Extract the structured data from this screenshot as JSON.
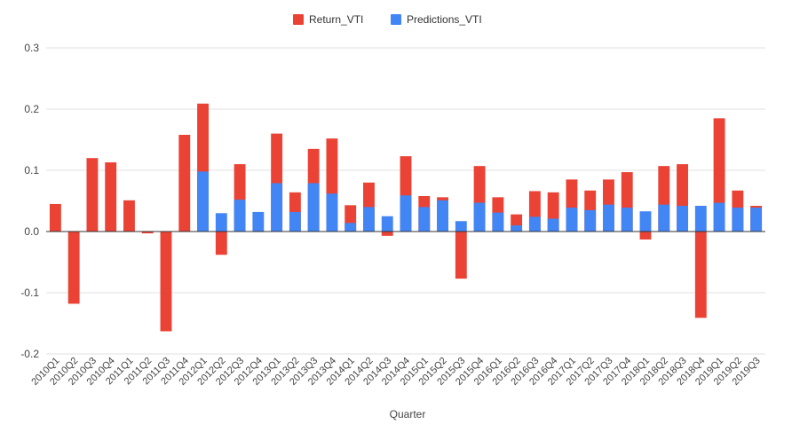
{
  "chart_data": {
    "type": "bar",
    "stacked": false,
    "overlap": true,
    "title": "",
    "xlabel": "Quarter",
    "ylabel": "",
    "ylim": [
      -0.2,
      0.3
    ],
    "yticks": [
      -0.2,
      -0.1,
      0.0,
      0.1,
      0.2,
      0.3
    ],
    "ytick_labels": [
      "-0.2",
      "-0.1",
      "0.0",
      "0.1",
      "0.2",
      "0.3"
    ],
    "grid": true,
    "legend_position": "top",
    "categories": [
      "2010Q1",
      "2010Q2",
      "2010Q3",
      "2010Q4",
      "2011Q1",
      "2011Q2",
      "2011Q3",
      "2011Q4",
      "2012Q1",
      "2012Q2",
      "2012Q3",
      "2012Q4",
      "2013Q1",
      "2013Q2",
      "2013Q3",
      "2013Q4",
      "2014Q1",
      "2014Q2",
      "2014Q3",
      "2014Q4",
      "2015Q1",
      "2015Q2",
      "2015Q3",
      "2015Q4",
      "2016Q1",
      "2016Q2",
      "2016Q3",
      "2016Q4",
      "2017Q1",
      "2017Q2",
      "2017Q3",
      "2017Q4",
      "2018Q1",
      "2018Q2",
      "2018Q3",
      "2018Q4",
      "2019Q1",
      "2019Q2",
      "2019Q3"
    ],
    "series": [
      {
        "name": "Return_VTI",
        "color": "#ea4335",
        "values": [
          0.045,
          -0.118,
          0.12,
          0.113,
          0.051,
          -0.003,
          -0.163,
          0.158,
          0.209,
          -0.038,
          0.11,
          0.0,
          0.16,
          0.064,
          0.135,
          0.152,
          0.043,
          0.08,
          -0.007,
          0.123,
          0.058,
          0.056,
          -0.077,
          0.107,
          0.056,
          0.028,
          0.066,
          0.064,
          0.085,
          0.067,
          0.085,
          0.097,
          -0.013,
          0.107,
          0.11,
          -0.141,
          0.185,
          0.067,
          0.042
        ]
      },
      {
        "name": "Predictions_VTI",
        "color": "#4285f4",
        "values": [
          null,
          null,
          null,
          null,
          null,
          null,
          null,
          null,
          0.098,
          0.03,
          0.052,
          0.032,
          0.079,
          0.032,
          0.079,
          0.062,
          0.014,
          0.04,
          0.025,
          0.059,
          0.04,
          0.051,
          0.017,
          0.047,
          0.031,
          0.01,
          0.024,
          0.021,
          0.039,
          0.035,
          0.044,
          0.039,
          0.033,
          0.044,
          0.042,
          0.042,
          0.047,
          0.039,
          0.039
        ]
      }
    ]
  }
}
